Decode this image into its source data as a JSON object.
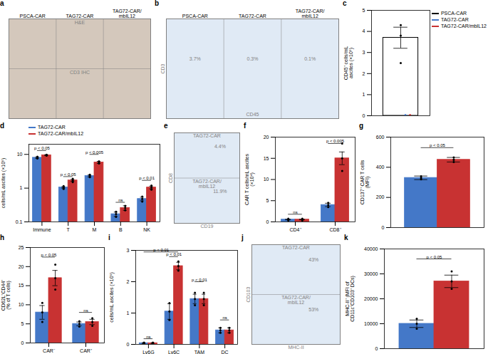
{
  "chart_data": [
    {
      "type": "image",
      "title": "a",
      "color": "#d4c8bc",
      "categories": [
        "PSCA-CAR",
        "TAG72-CAR",
        "TAG72-CAR/\nmbIL12"
      ],
      "annotations": [
        "H&E",
        "CD3 IHC"
      ]
    },
    {
      "type": "image",
      "title": "b",
      "color": "#e0eaf5",
      "categories": [
        "PSCA-CAR",
        "TAG72-CAR",
        "TAG72-CAR/\nmbIL12"
      ],
      "annotations": [
        "3.7%",
        "0.3%",
        "0.1%"
      ],
      "xlabel": "CD45",
      "ylabel": "CD3"
    },
    {
      "type": "bar",
      "title": "c",
      "ylabel": "CD45⁺ cells/mL\nascites (×10⁵)",
      "categories": [
        null
      ],
      "ylim": [
        0,
        5
      ],
      "yticks": [
        0,
        1,
        2,
        3,
        4,
        5
      ],
      "tick_labels": "y",
      "legend": "upper right",
      "series": [
        {
          "name": "PSCA-CAR",
          "color": "#000000",
          "values": [
            3.7
          ],
          "errors": [
            0.5
          ],
          "points": [
            [
              2.5,
              3.8,
              4.3
            ]
          ]
        },
        {
          "name": "TAG72-CAR",
          "color": "#4478C8",
          "type": "scatter",
          "points": [
            [
              0.02,
              0.02,
              0.025
            ]
          ]
        },
        {
          "name": "TAG72-CAR/mbIL12",
          "color": "#C83232",
          "type": "scatter",
          "points": [
            [
              0.015,
              0.02,
              0.025
            ]
          ]
        }
      ]
    },
    {
      "type": "bar",
      "title": "d",
      "ylabel": "cells/mL ascites (×10⁵)",
      "categories": [
        "Immune",
        "T",
        "M",
        "B",
        "NK"
      ],
      "log": "y",
      "ylim": [
        0.1,
        20
      ],
      "yticks": [
        0.1,
        1,
        10
      ],
      "legend": "upper left",
      "series": [
        {
          "name": "TAG72-CAR",
          "color": "#4478C8",
          "values": [
            8.0,
            1.05,
            2.3,
            0.17,
            0.48
          ],
          "errors": [
            0.4,
            0.05,
            0.15,
            0.025,
            0.06
          ],
          "points": [
            [
              7.6,
              8.0,
              8.5
            ],
            [
              0.95,
              1.05,
              1.15
            ],
            [
              2.1,
              2.3,
              2.5
            ],
            [
              0.14,
              0.17,
              0.2
            ],
            [
              0.4,
              0.48,
              0.56
            ]
          ]
        },
        {
          "name": "TAG72-CAR/mbIL12",
          "color": "#C83232",
          "values": [
            9.5,
            1.7,
            5.8,
            0.26,
            1.05
          ],
          "errors": [
            0.3,
            0.12,
            0.4,
            0.04,
            0.1
          ],
          "points": [
            [
              9.2,
              9.5,
              9.8
            ],
            [
              1.5,
              1.7,
              1.9
            ],
            [
              5.4,
              5.8,
              6.2
            ],
            [
              0.22,
              0.26,
              0.3
            ],
            [
              0.9,
              1.05,
              1.2
            ]
          ]
        }
      ],
      "annotations": [
        {
          "text": "p < 0.05",
          "y": 13,
          "category": "Immune"
        },
        {
          "text": "p < 0.05",
          "y": 2.2,
          "category": "T"
        },
        {
          "text": "p < 0.005",
          "y": 10,
          "category": "M"
        },
        {
          "text": "ns",
          "y": 0.38,
          "category": "B"
        },
        {
          "text": "p < 0.01",
          "y": 1.7,
          "category": "NK"
        }
      ]
    },
    {
      "type": "image",
      "title": "e",
      "color": "#e0eaf5",
      "categories": [
        "TAG72-CAR",
        "TAG72-CAR/\nmbIL12"
      ],
      "annotations": [
        "4.4%",
        "11.9%"
      ],
      "xlabel": "CD19",
      "ylabel": "CD8"
    },
    {
      "type": "bar",
      "title": "f",
      "ylabel": "CAR T cells/mL ascites\n(×10⁴)",
      "categories": [
        "CD4⁺",
        "CD8⁺"
      ],
      "ylim": [
        0,
        20
      ],
      "yticks": [
        0,
        5,
        10,
        15,
        20
      ],
      "series": [
        {
          "color": "#4478C8",
          "values": [
            0.55,
            4.0
          ],
          "errors": [
            0.08,
            0.4
          ],
          "points": [
            [
              0.35,
              0.55,
              0.75
            ],
            [
              3.5,
              4.0,
              4.5
            ]
          ]
        },
        {
          "color": "#C83232",
          "values": [
            0.55,
            15.0
          ],
          "errors": [
            0.08,
            1.5
          ],
          "points": [
            [
              0.35,
              0.55,
              0.75
            ],
            [
              12.0,
              15.0,
              18.5
            ]
          ]
        }
      ],
      "annotations": [
        {
          "text": "ns",
          "y": 1.8,
          "category": "CD4⁺"
        },
        {
          "text": "p < 0.005",
          "y": 18.5,
          "category": "CD8⁺"
        }
      ]
    },
    {
      "type": "bar",
      "title": "g",
      "ylabel": "CD137⁺ CAR T cells\n(MFI)",
      "categories": [
        null
      ],
      "ylim": [
        0,
        600
      ],
      "yticks": [
        0,
        200,
        400,
        600
      ],
      "tick_labels": "y",
      "series": [
        {
          "color": "#4478C8",
          "values": [
            330
          ],
          "errors": [
            12
          ],
          "points": [
            [
              320,
              330,
              340
            ]
          ]
        },
        {
          "color": "#C83232",
          "values": [
            450
          ],
          "errors": [
            15
          ],
          "points": [
            [
              435,
              450,
              465
            ]
          ]
        }
      ],
      "annotations": [
        {
          "text": "p < 0.05",
          "y": 530,
          "category": null
        }
      ]
    },
    {
      "type": "bar",
      "title": "h",
      "ylabel": "CD62L⁺CD44⁺\n(% of T cells)",
      "categories": [
        "CAR⁻",
        "CAR⁺"
      ],
      "ylim": [
        0,
        25
      ],
      "yticks": [
        0,
        5,
        10,
        15,
        20,
        25
      ],
      "series": [
        {
          "color": "#4478C8",
          "values": [
            8.0,
            5.0
          ],
          "errors": [
            1.8,
            0.5
          ],
          "points": [
            [
              5.5,
              8.0,
              10.5
            ],
            [
              4.3,
              5.0,
              5.7
            ]
          ]
        },
        {
          "color": "#C83232",
          "values": [
            17.0,
            5.5
          ],
          "errors": [
            2.0,
            0.7
          ],
          "points": [
            [
              14.0,
              17.0,
              20.5
            ],
            [
              4.5,
              5.5,
              6.5
            ]
          ]
        }
      ],
      "annotations": [
        {
          "text": "p < 0.05",
          "y": 22.5,
          "category": "CAR⁻"
        },
        {
          "text": "ns",
          "y": 8.0,
          "category": "CAR⁺"
        }
      ]
    },
    {
      "type": "bar",
      "title": "i",
      "ylabel": "cells/mL ascites (×10⁵)",
      "categories": [
        "Ly6G",
        "Ly6C",
        "TAM",
        "DC"
      ],
      "ylim": [
        0,
        3
      ],
      "yticks": [
        0,
        1,
        2,
        3
      ],
      "series": [
        {
          "color": "#4478C8",
          "values": [
            0.04,
            1.05,
            1.45,
            0.45
          ],
          "errors": [
            0.015,
            0.25,
            0.15,
            0.08
          ],
          "points": [
            [
              0.025,
              0.04,
              0.055
            ],
            [
              0.78,
              1.05,
              1.32
            ],
            [
              1.25,
              1.45,
              1.65
            ],
            [
              0.37,
              0.45,
              0.53
            ]
          ]
        },
        {
          "color": "#C83232",
          "values": [
            0.04,
            2.5,
            1.45,
            0.45
          ],
          "errors": [
            0.015,
            0.12,
            0.15,
            0.08
          ],
          "points": [
            [
              0.025,
              0.04,
              0.055
            ],
            [
              2.35,
              2.5,
              2.65
            ],
            [
              1.25,
              1.45,
              1.65
            ],
            [
              0.37,
              0.45,
              0.53
            ]
          ]
        }
      ],
      "annotations": [
        {
          "text": "ns",
          "y": 0.18,
          "category": "Ly6G"
        },
        {
          "text": "p < 0.01",
          "y": 2.8,
          "category": "Ly6C"
        },
        {
          "text": "p < 0.01",
          "y": 2.0,
          "category": "TAM"
        },
        {
          "text": "ns",
          "y": 0.78,
          "category": "DC"
        },
        {
          "text": "p < 0.01",
          "y": 2.95,
          "categories": [
            "Ly6G",
            "Ly6C"
          ]
        }
      ]
    },
    {
      "type": "image",
      "title": "j",
      "color": "#e0eaf5",
      "categories": [
        "TAG72-CAR",
        "TAG72-CAR/\nmbIL12"
      ],
      "annotations": [
        "43%",
        "53%"
      ],
      "xlabel": "MHC-II",
      "ylabel": "CD103"
    },
    {
      "type": "bar",
      "title": "k",
      "ylabel": "MHC-II⁺ (MFI of\nCD11c⁺CD103⁺ DCs)",
      "categories": [
        null
      ],
      "ylim": [
        0,
        40000
      ],
      "yticks": [
        0,
        10000,
        20000,
        30000,
        40000
      ],
      "tick_labels": "y",
      "series": [
        {
          "color": "#4478C8",
          "values": [
            10000
          ],
          "errors": [
            1500
          ],
          "points": [
            [
              8000,
              10000,
              12000
            ]
          ]
        },
        {
          "color": "#C83232",
          "values": [
            27000
          ],
          "errors": [
            2500
          ],
          "points": [
            [
              24000,
              27000,
              31000
            ]
          ]
        }
      ],
      "annotations": [
        {
          "text": "p < 0.05",
          "y": 36000,
          "category": null
        }
      ]
    }
  ]
}
